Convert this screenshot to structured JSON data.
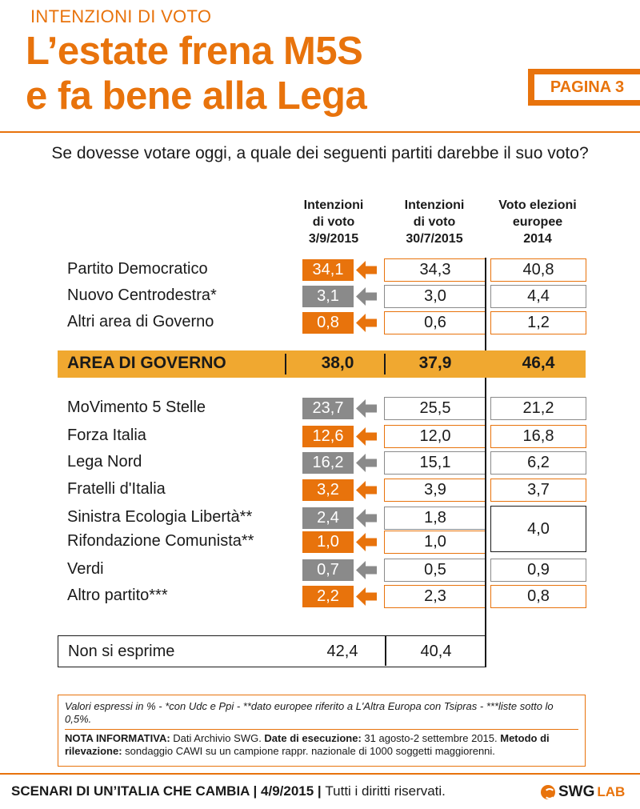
{
  "header": {
    "kicker": "INTENZIONI DI VOTO",
    "title_line1": "L’estate frena M5S",
    "title_line2": "e fa bene alla Lega",
    "page_label": "PAGINA 3"
  },
  "question": "Se dovesse votare oggi, a quale dei seguenti partiti darebbe il suo voto?",
  "columns": [
    {
      "lines": [
        "Intenzioni",
        "di voto",
        "3/9/2015"
      ]
    },
    {
      "lines": [
        "Intenzioni",
        "di voto",
        "30/7/2015"
      ]
    },
    {
      "lines": [
        "Voto elezioni",
        "europee",
        "2014"
      ]
    }
  ],
  "colors": {
    "accent": "#e8730c",
    "gray": "#8a8a8a",
    "band": "#f0a830"
  },
  "chart_data": {
    "type": "table",
    "rows": [
      {
        "party": "Partito Democratico",
        "current": "34,1",
        "prev": "34,3",
        "eu": "40,8",
        "color": "orange"
      },
      {
        "party": "Nuovo Centrodestra*",
        "current": "3,1",
        "prev": "3,0",
        "eu": "4,4",
        "color": "gray"
      },
      {
        "party": "Altri area di Governo",
        "current": "0,8",
        "prev": "0,6",
        "eu": "1,2",
        "color": "orange"
      },
      {
        "party": "MoVimento 5 Stelle",
        "current": "23,7",
        "prev": "25,5",
        "eu": "21,2",
        "color": "gray"
      },
      {
        "party": "Forza Italia",
        "current": "12,6",
        "prev": "12,0",
        "eu": "16,8",
        "color": "orange"
      },
      {
        "party": "Lega Nord",
        "current": "16,2",
        "prev": "15,1",
        "eu": "6,2",
        "color": "gray"
      },
      {
        "party": "Fratelli d'Italia",
        "current": "3,2",
        "prev": "3,9",
        "eu": "3,7",
        "color": "orange"
      },
      {
        "party": "Sinistra Ecologia Libertà**",
        "current": "2,4",
        "prev": "1,8",
        "eu": "",
        "color": "gray"
      },
      {
        "party": "Rifondazione Comunista**",
        "current": "1,0",
        "prev": "1,0",
        "eu": "",
        "color": "orange"
      },
      {
        "party": "Verdi",
        "current": "0,7",
        "prev": "0,5",
        "eu": "0,9",
        "color": "gray"
      },
      {
        "party": "Altro partito***",
        "current": "2,2",
        "prev": "2,3",
        "eu": "0,8",
        "color": "orange"
      }
    ],
    "merged_eu_value": "4,0",
    "government_area": {
      "label": "AREA DI GOVERNO",
      "current": "38,0",
      "prev": "37,9",
      "eu": "46,4"
    },
    "no_answer": {
      "label": "Non si esprime",
      "current": "42,4",
      "prev": "40,4"
    }
  },
  "notes": {
    "line1": "Valori espressi in % - *con Udc e Ppi - **dato europee riferito a L'Altra Europa con Tsipras - ***liste sotto lo 0,5%.",
    "nota_label": "NOTA INFORMATIVA:",
    "nota_text1": " Dati Archivio SWG. ",
    "date_label": "Date di esecuzione:",
    "date_text": " 31 agosto-2 settembre 2015. ",
    "method_label": "Metodo di rilevazione:",
    "method_text": " sondaggio CAWI su un campione rappr. nazionale di 1000 soggetti maggiorenni."
  },
  "footer": {
    "series_title": "SCENARI DI UN’ITALIA CHE CAMBIA",
    "sep1": " | ",
    "date": "4/9/2015",
    "sep2": " | ",
    "rights": "Tutti i diritti riservati.",
    "logo_swg": "SWG",
    "logo_lab": "LAB"
  }
}
